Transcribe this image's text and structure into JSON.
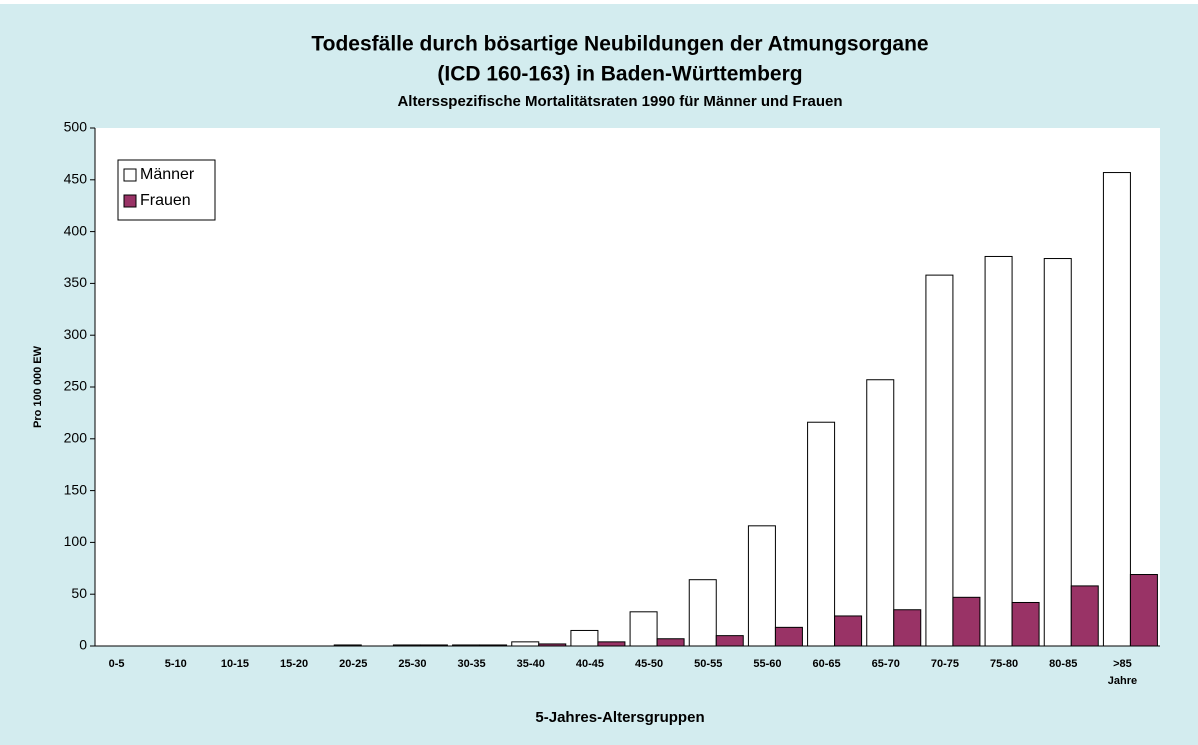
{
  "chart_data": {
    "type": "bar",
    "title": [
      "Todesfälle durch bösartige Neubildungen der Atmungsorgane",
      "(ICD 160-163) in Baden-Württemberg"
    ],
    "subtitle": "Altersspezifische Mortalitätsraten 1990 für Männer und Frauen",
    "y_label": "Pro 100 000 EW",
    "x_label": "5-Jahres-Altersgruppen",
    "x_unit_note": "Jahre",
    "categories": [
      "0-5",
      "5-10",
      "10-15",
      "15-20",
      "20-25",
      "25-30",
      "30-35",
      "35-40",
      "40-45",
      "45-50",
      "50-55",
      "55-60",
      "60-65",
      "65-70",
      "70-75",
      "75-80",
      "80-85",
      ">85"
    ],
    "series": [
      {
        "name": "Männer",
        "color": "#ffffff",
        "values": [
          0,
          0,
          0,
          0,
          1,
          1,
          1,
          4,
          15,
          33,
          64,
          116,
          216,
          257,
          358,
          376,
          374,
          457
        ]
      },
      {
        "name": "Frauen",
        "color": "#993366",
        "values": [
          0,
          0,
          0,
          0,
          0,
          1,
          1,
          2,
          4,
          7,
          10,
          18,
          29,
          35,
          47,
          42,
          58,
          69
        ]
      }
    ],
    "ylim": [
      0,
      500
    ],
    "yticks": [
      0,
      50,
      100,
      150,
      200,
      250,
      300,
      350,
      400,
      450,
      500
    ],
    "grid": false,
    "legend": "top-left"
  }
}
